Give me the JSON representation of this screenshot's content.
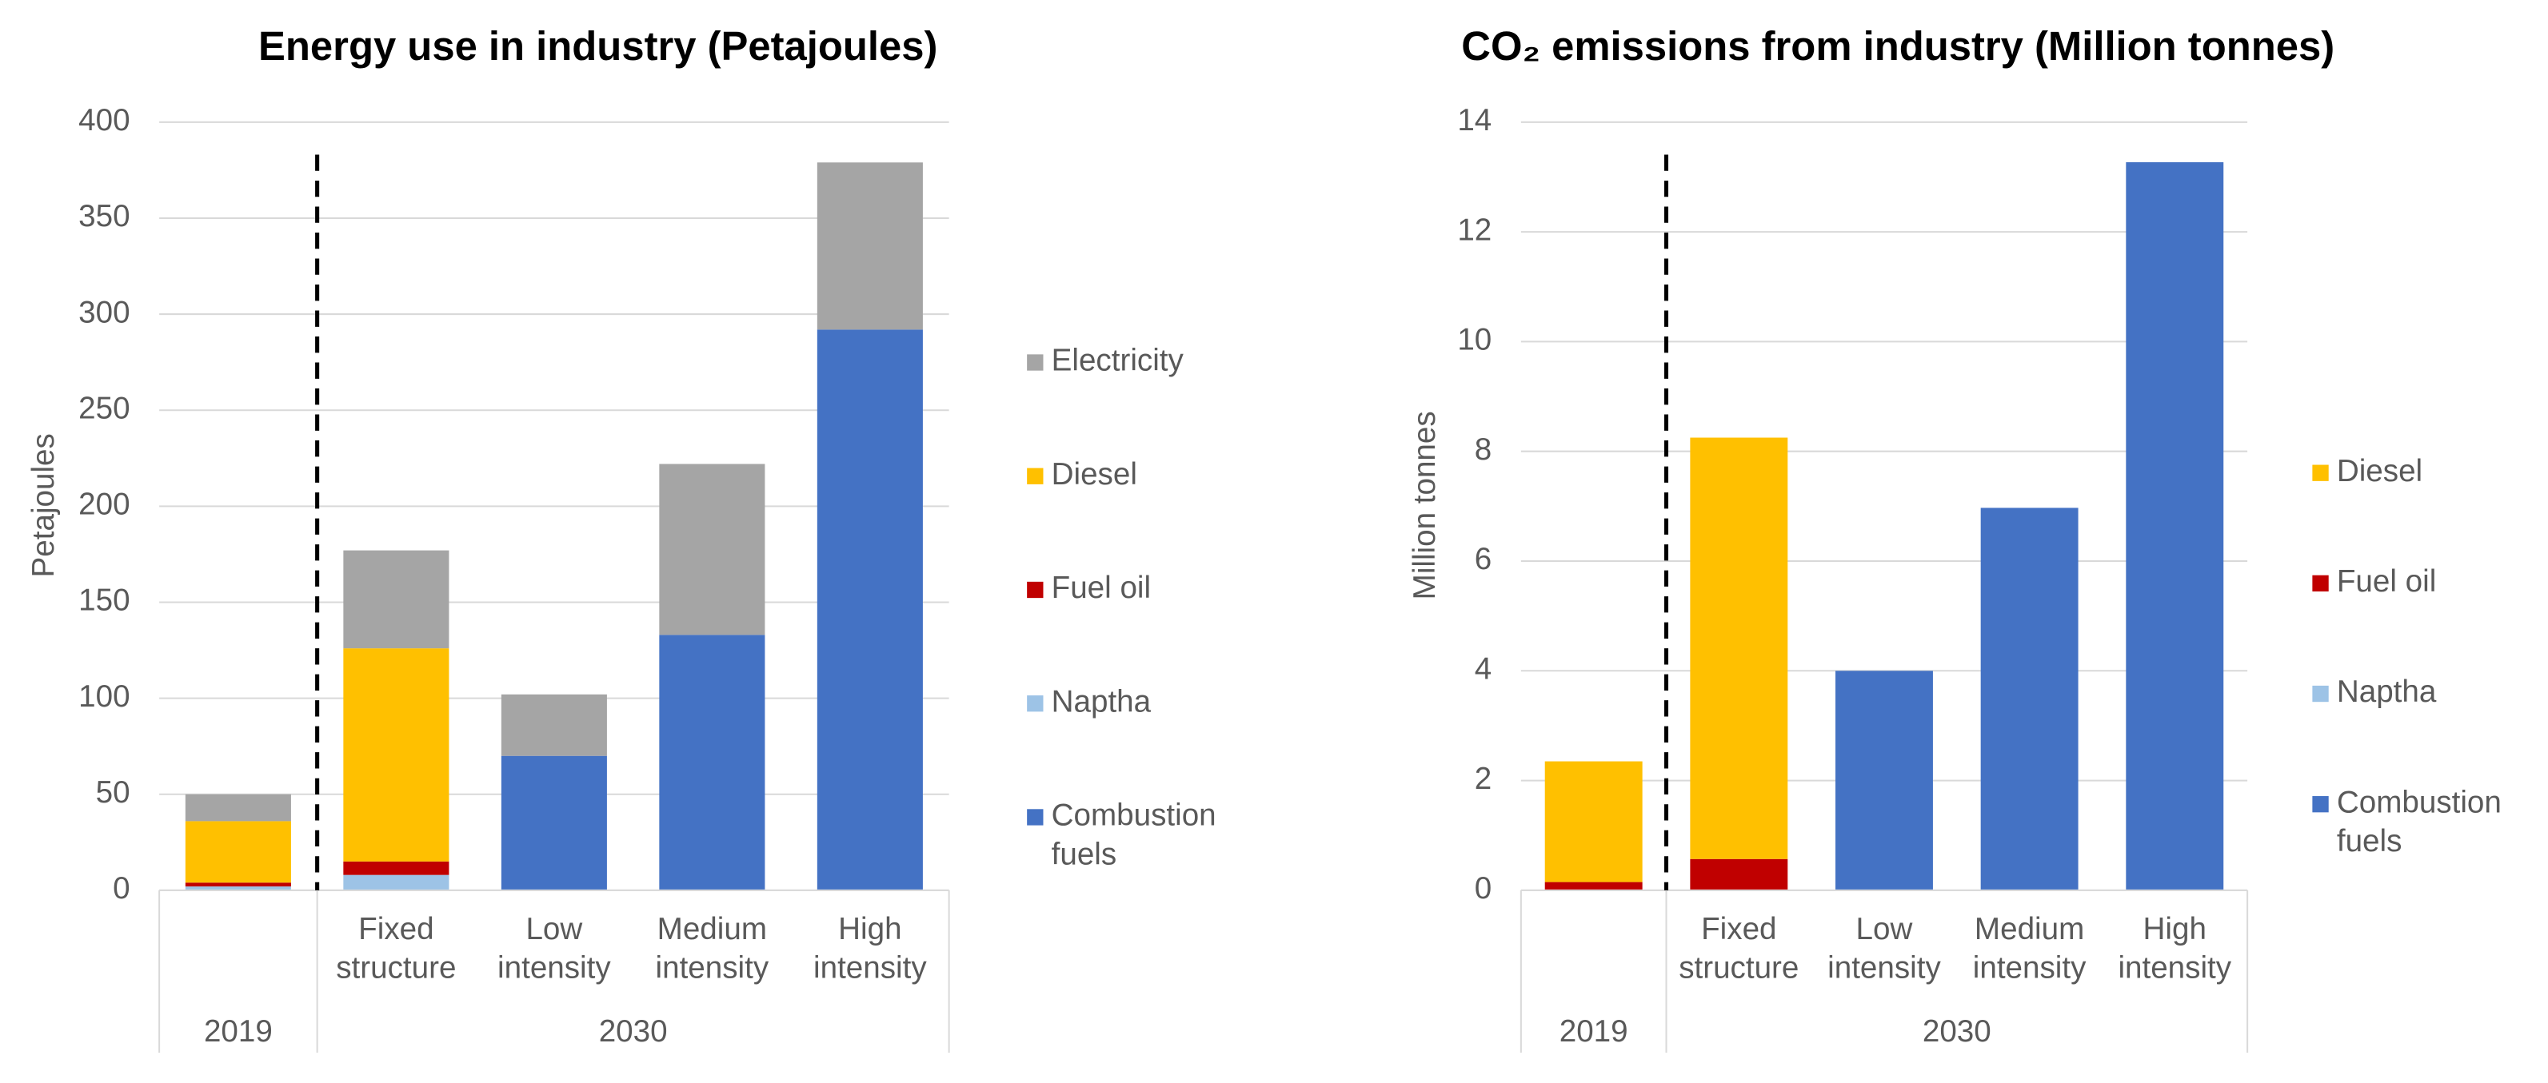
{
  "chart_data": [
    {
      "type": "stacked-bar",
      "title": "Energy use in industry (Petajoules)",
      "y_label": "Petajoules",
      "groups": [
        {
          "label": "2019",
          "categories": [
            null
          ]
        },
        {
          "label": "2030",
          "categories": [
            "Fixed structure",
            "Low intensity",
            "Medium intensity",
            "High intensity"
          ]
        }
      ],
      "series": [
        {
          "name": "Combustion fuels",
          "color": "#4472c4",
          "values": [
            0,
            0,
            70,
            133,
            292
          ]
        },
        {
          "name": "Naptha",
          "color": "#9dc3e6",
          "values": [
            2,
            8,
            0,
            0,
            0
          ]
        },
        {
          "name": "Fuel oil",
          "color": "#c00000",
          "values": [
            2,
            7,
            0,
            0,
            0
          ]
        },
        {
          "name": "Diesel",
          "color": "#ffc000",
          "values": [
            32,
            111,
            0,
            0,
            0
          ]
        },
        {
          "name": "Electricity",
          "color": "#a5a5a5",
          "values": [
            14,
            51,
            32,
            89,
            87
          ]
        }
      ],
      "ylim": [
        0,
        400
      ],
      "yticks": [
        0,
        50,
        100,
        150,
        200,
        250,
        300,
        350,
        400
      ],
      "grid": true,
      "legend": "right"
    },
    {
      "type": "stacked-bar",
      "title": "CO₂ emissions from industry (Million tonnes)",
      "y_label": "Million tonnes",
      "groups": [
        {
          "label": "2019",
          "categories": [
            null
          ]
        },
        {
          "label": "2030",
          "categories": [
            "Fixed structure",
            "Low intensity",
            "Medium intensity",
            "High intensity"
          ]
        }
      ],
      "series": [
        {
          "name": "Combustion fuels",
          "color": "#4472c4",
          "values": [
            0,
            0,
            4.0,
            6.97,
            13.27
          ]
        },
        {
          "name": "Naptha",
          "color": "#9dc3e6",
          "values": [
            0,
            0,
            0,
            0,
            0
          ]
        },
        {
          "name": "Fuel oil",
          "color": "#c00000",
          "values": [
            0.15,
            0.57,
            0,
            0,
            0
          ]
        },
        {
          "name": "Diesel",
          "color": "#ffc000",
          "values": [
            2.2,
            7.68,
            0,
            0,
            0
          ]
        }
      ],
      "ylim": [
        0,
        14
      ],
      "yticks": [
        0,
        2,
        4,
        6,
        8,
        10,
        12,
        14
      ],
      "grid": true,
      "legend": "right"
    }
  ]
}
